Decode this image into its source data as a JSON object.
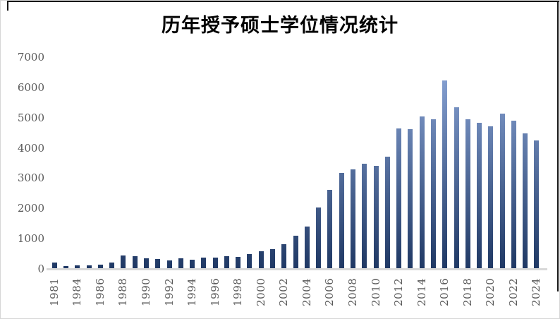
{
  "title": "历年授予硕士学位情况统计",
  "colors": {
    "bar_gradient_top": "#8FAADC",
    "bar_gradient_bottom": "#1F3864",
    "axis_line": "#D9D9D9",
    "tick_text": "#595959",
    "title_text": "#000000",
    "chart_border": "#171717"
  },
  "chart_data": {
    "type": "bar",
    "title": "历年授予硕士学位情况统计",
    "xlabel": "",
    "ylabel": "",
    "ylim": [
      0,
      7000
    ],
    "y_ticks": [
      0,
      1000,
      2000,
      3000,
      4000,
      5000,
      6000,
      7000
    ],
    "x_tick_labels_shown": [
      "1981",
      "1984",
      "1986",
      "1988",
      "1990",
      "1992",
      "1994",
      "1996",
      "1998",
      "2000",
      "2002",
      "2004",
      "2006",
      "2008",
      "2010",
      "2012",
      "2014",
      "2016",
      "2018",
      "2020",
      "2022",
      "2024"
    ],
    "grid": false,
    "legend": false,
    "categories": [
      "1981",
      "1982",
      "1984",
      "1985",
      "1986",
      "1987",
      "1988",
      "1989",
      "1990",
      "1991",
      "1992",
      "1993",
      "1994",
      "1995",
      "1996",
      "1997",
      "1998",
      "1999",
      "2000",
      "2001",
      "2002",
      "2003",
      "2004",
      "2005",
      "2006",
      "2007",
      "2008",
      "2009",
      "2010",
      "2011",
      "2012",
      "2013",
      "2014",
      "2015",
      "2016",
      "2017",
      "2018",
      "2019",
      "2020",
      "2021",
      "2022",
      "2023",
      "2024"
    ],
    "values": [
      205,
      85,
      125,
      110,
      140,
      205,
      450,
      415,
      350,
      335,
      285,
      360,
      310,
      365,
      375,
      425,
      405,
      490,
      590,
      660,
      815,
      1090,
      1400,
      2030,
      2620,
      3170,
      3280,
      3480,
      3400,
      3710,
      4650,
      4620,
      5050,
      4940,
      6220,
      5350,
      4950,
      4840,
      4710,
      5130,
      4890,
      4470,
      4240
    ]
  }
}
